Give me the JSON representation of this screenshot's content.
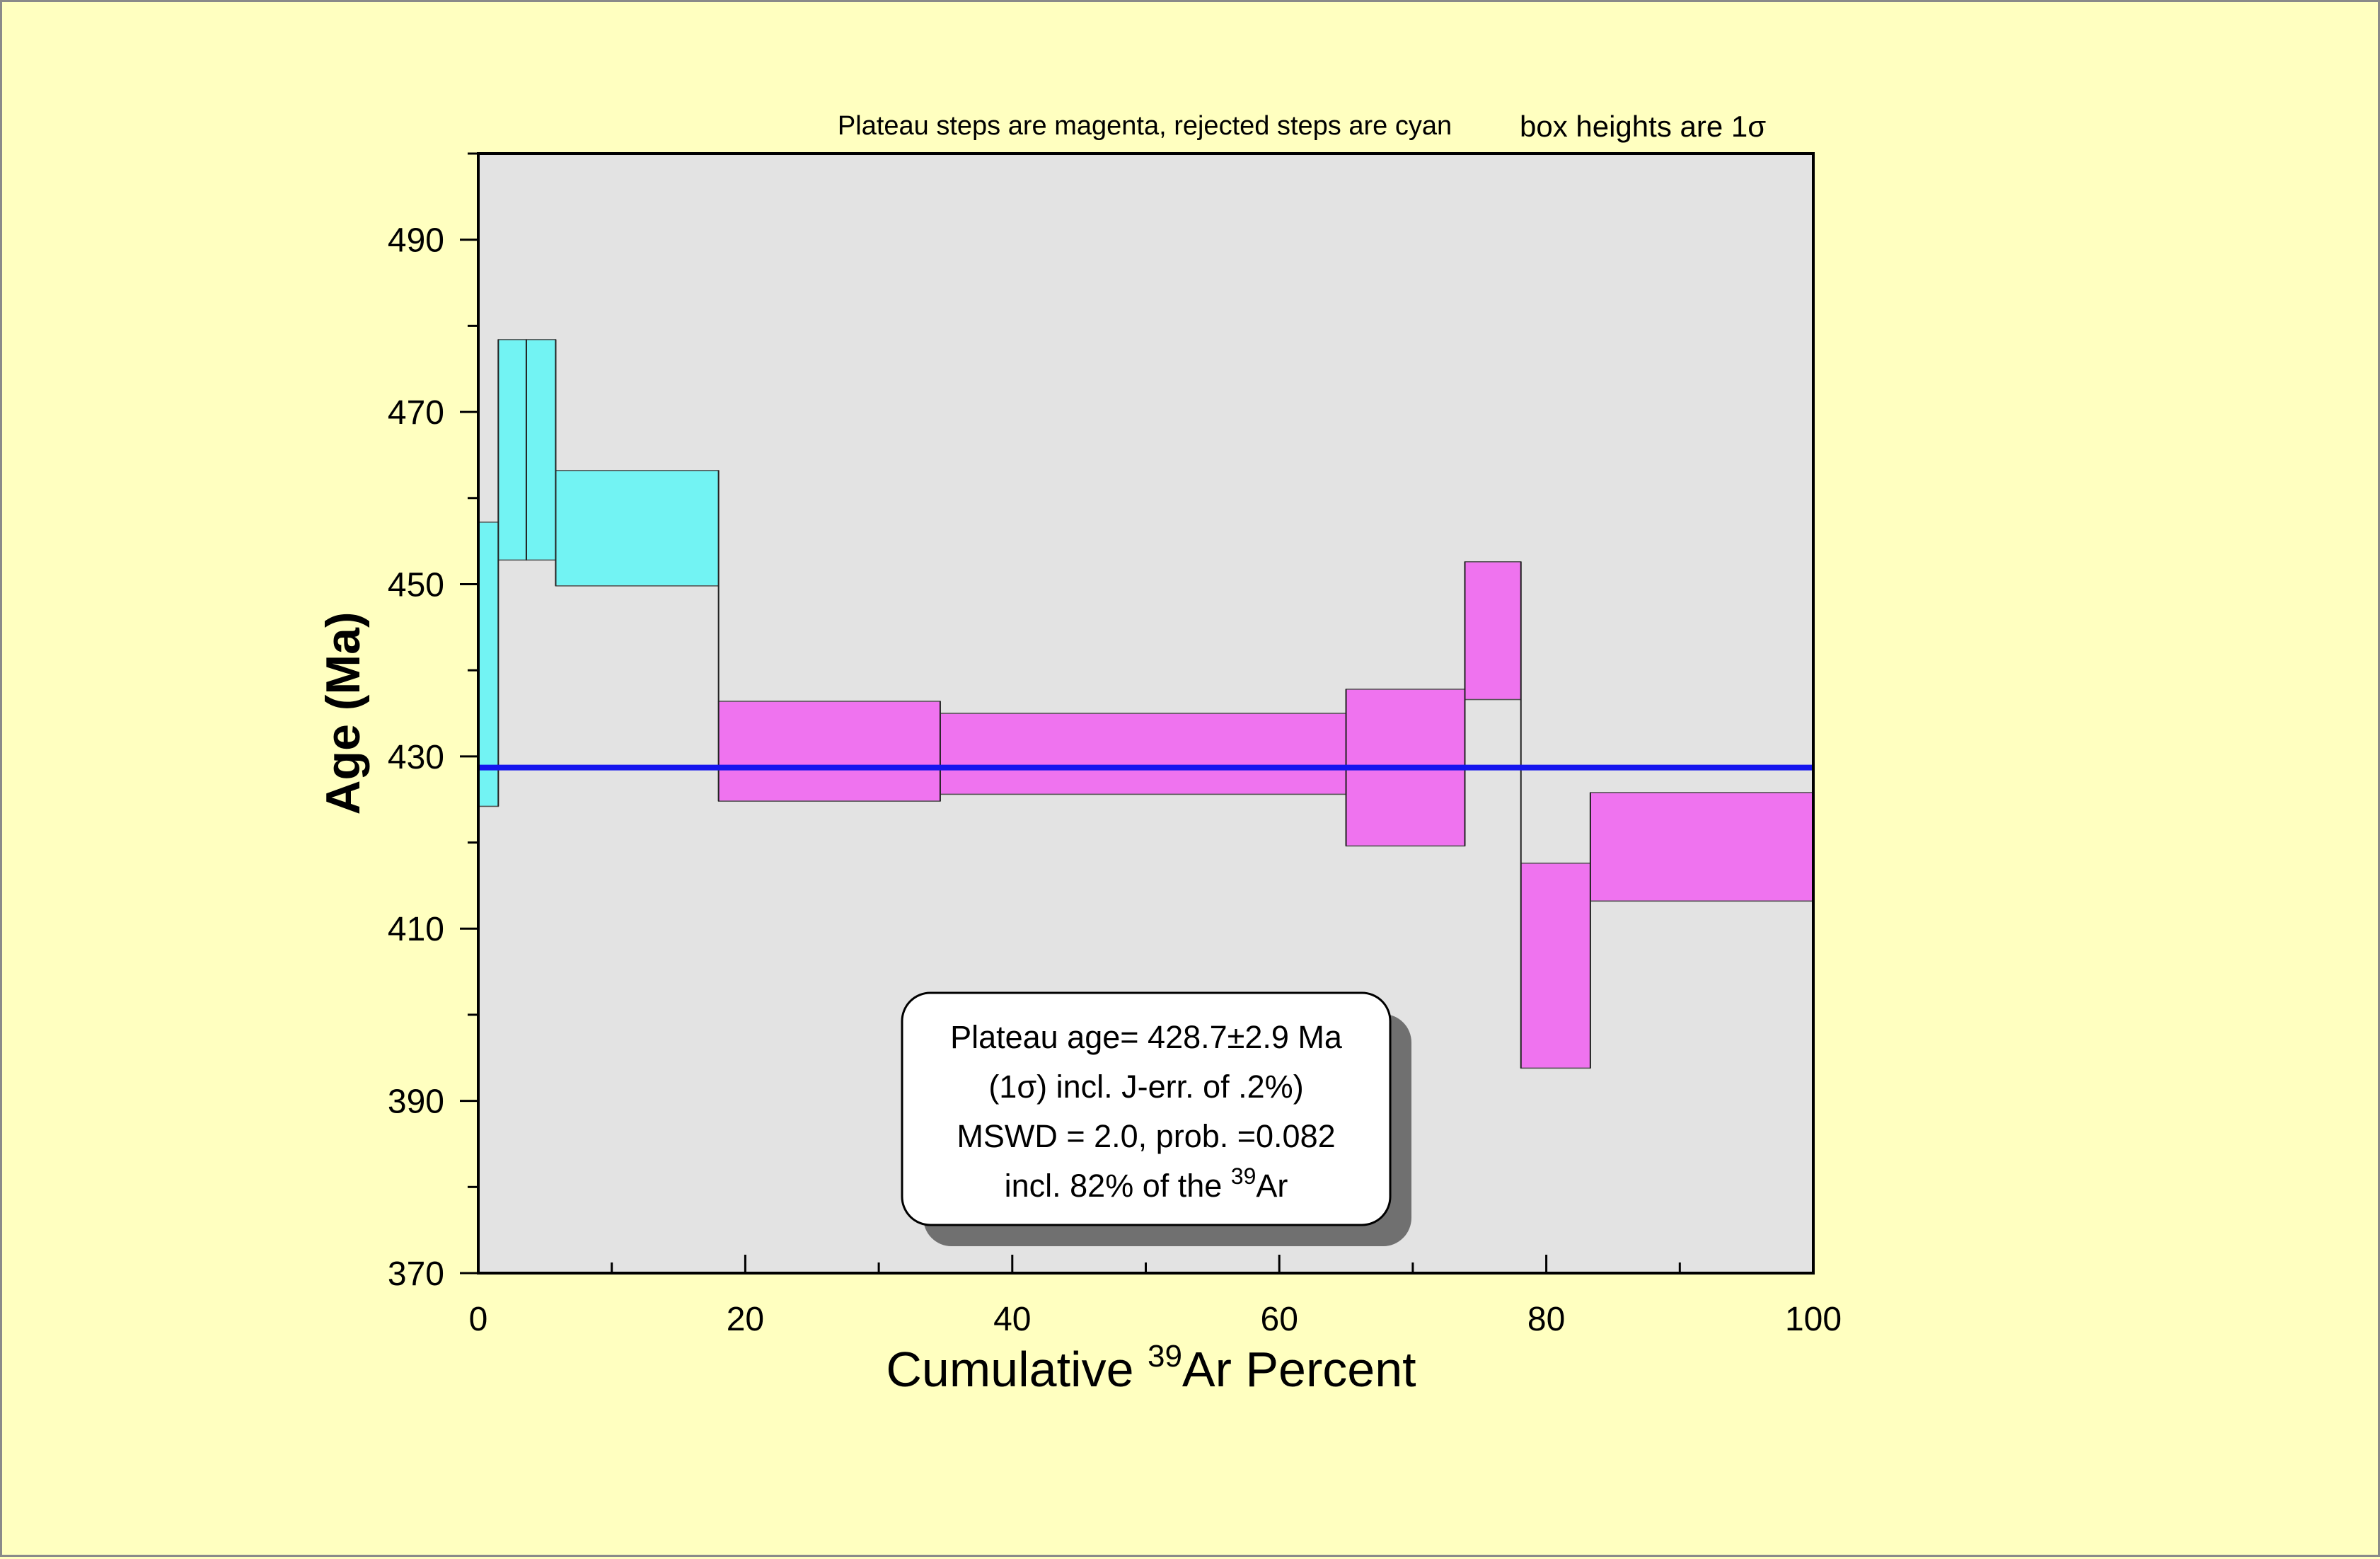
{
  "chart_data": {
    "type": "bar",
    "subtype": "argon-age-spectrum",
    "header_left": "Plateau steps are magenta, rejected steps are cyan",
    "header_right": {
      "prefix": "box heights are 1",
      "symbol": "σ"
    },
    "xlabel": {
      "prefix": "Cumulative ",
      "sup": "39",
      "suffix": "Ar Percent"
    },
    "ylabel": "Age (Ma)",
    "xlim": [
      0,
      100
    ],
    "ylim": [
      370,
      500
    ],
    "x_ticks": [
      0,
      20,
      40,
      60,
      80,
      100
    ],
    "y_ticks": [
      370,
      390,
      410,
      430,
      450,
      470,
      490
    ],
    "plot_background": "#e3e3e3",
    "colors": {
      "plateau": "#ef73ef",
      "rejected": "#72f3f3",
      "plateau_line": "#1515ee"
    },
    "steps": [
      {
        "x0": 0.0,
        "x1": 1.5,
        "age_low": 424.2,
        "age_high": 457.2,
        "status": "rejected"
      },
      {
        "x0": 1.5,
        "x1": 3.6,
        "age_low": 452.8,
        "age_high": 478.4,
        "status": "rejected"
      },
      {
        "x0": 3.6,
        "x1": 5.8,
        "age_low": 452.8,
        "age_high": 478.4,
        "status": "rejected"
      },
      {
        "x0": 5.8,
        "x1": 18.0,
        "age_low": 449.8,
        "age_high": 463.2,
        "status": "rejected"
      },
      {
        "x0": 18.0,
        "x1": 34.6,
        "age_low": 424.8,
        "age_high": 436.4,
        "status": "plateau"
      },
      {
        "x0": 34.6,
        "x1": 65.0,
        "age_low": 425.6,
        "age_high": 435.0,
        "status": "plateau"
      },
      {
        "x0": 65.0,
        "x1": 73.9,
        "age_low": 419.6,
        "age_high": 437.8,
        "status": "plateau"
      },
      {
        "x0": 73.9,
        "x1": 78.1,
        "age_low": 436.6,
        "age_high": 452.6,
        "status": "plateau"
      },
      {
        "x0": 78.1,
        "x1": 83.3,
        "age_low": 393.8,
        "age_high": 417.6,
        "status": "plateau"
      },
      {
        "x0": 83.3,
        "x1": 100.0,
        "age_low": 413.2,
        "age_high": 425.8,
        "status": "plateau"
      }
    ],
    "plateau_age": 428.7,
    "info_box": [
      {
        "text": "Plateau age= 428.7±2.9 Ma"
      },
      {
        "text": "(1σ) incl. J-err. of .2%)"
      },
      {
        "text": "MSWD = 2.0, prob. =0.082"
      },
      {
        "prefix": "incl. 82% of the ",
        "sup": "39",
        "suffix": "Ar"
      }
    ]
  }
}
